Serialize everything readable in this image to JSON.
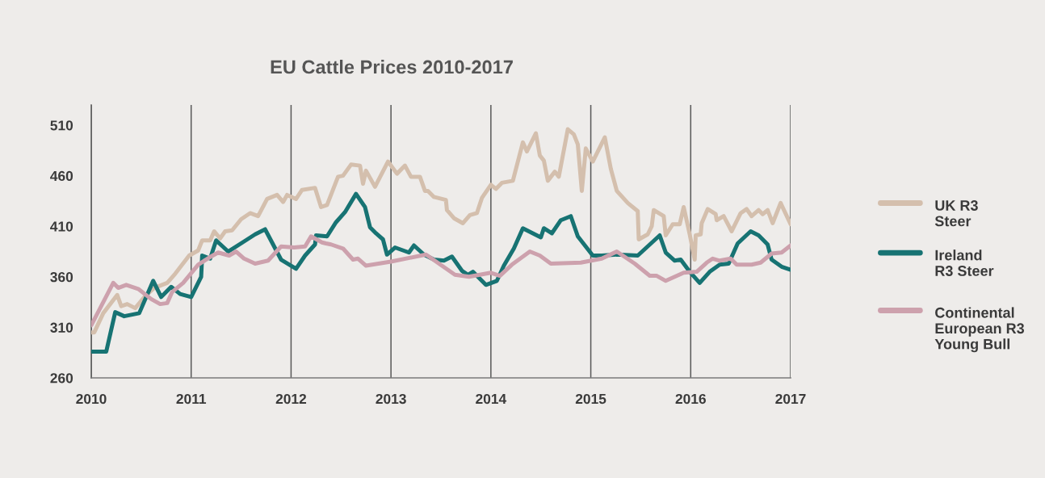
{
  "chart_data": {
    "type": "line",
    "title": "EU Cattle Prices 2010-2017",
    "xlim": [
      2010,
      2017
    ],
    "ylim": [
      260,
      530
    ],
    "xticks": [
      2010,
      2011,
      2012,
      2013,
      2014,
      2015,
      2016,
      2017
    ],
    "yticks": [
      260,
      310,
      360,
      410,
      460,
      510
    ],
    "grid": "x",
    "legend": "right",
    "line_style": "solid",
    "series": [
      {
        "name": "UK R3\nSteer",
        "color": "#d4bfad",
        "x": [
          2010.0,
          2010.03,
          2010.12,
          2010.26,
          2010.3,
          2010.36,
          2010.44,
          2010.54,
          2010.63,
          2010.76,
          2010.84,
          2010.98,
          2011.07,
          2011.11,
          2011.19,
          2011.23,
          2011.29,
          2011.34,
          2011.41,
          2011.5,
          2011.59,
          2011.67,
          2011.76,
          2011.86,
          2011.92,
          2011.96,
          2012.05,
          2012.11,
          2012.24,
          2012.3,
          2012.36,
          2012.47,
          2012.52,
          2012.6,
          2012.69,
          2012.72,
          2012.75,
          2012.84,
          2012.97,
          2013.06,
          2013.14,
          2013.2,
          2013.29,
          2013.34,
          2013.37,
          2013.43,
          2013.55,
          2013.56,
          2013.63,
          2013.72,
          2013.79,
          2013.86,
          2013.91,
          2014.0,
          2014.05,
          2014.11,
          2014.22,
          2014.32,
          2014.36,
          2014.45,
          2014.49,
          2014.53,
          2014.57,
          2014.64,
          2014.68,
          2014.77,
          2014.83,
          2014.87,
          2014.91,
          2014.95,
          2015.02,
          2015.14,
          2015.2,
          2015.26,
          2015.37,
          2015.47,
          2015.48,
          2015.57,
          2015.61,
          2015.63,
          2015.73,
          2015.75,
          2015.82,
          2015.89,
          2015.93,
          2015.99,
          2016.04,
          2016.05,
          2016.1,
          2016.11,
          2016.17,
          2016.25,
          2016.26,
          2016.33,
          2016.41,
          2016.5,
          2016.56,
          2016.61,
          2016.68,
          2016.72,
          2016.77,
          2016.82,
          2016.9,
          2017.0
        ],
        "values": [
          305,
          305,
          324,
          342,
          331,
          333,
          329,
          341,
          349,
          354,
          363,
          381,
          386,
          396,
          396,
          405,
          398,
          405,
          406,
          417,
          423,
          420,
          437,
          441,
          434,
          441,
          437,
          446,
          448,
          429,
          431,
          459,
          460,
          471,
          470,
          452,
          465,
          449,
          474,
          462,
          470,
          459,
          459,
          445,
          445,
          439,
          436,
          426,
          418,
          413,
          421,
          423,
          438,
          451,
          447,
          453,
          455,
          493,
          484,
          502,
          480,
          475,
          455,
          464,
          459,
          506,
          501,
          491,
          445,
          487,
          474,
          498,
          467,
          445,
          433,
          425,
          397,
          402,
          410,
          426,
          420,
          401,
          412,
          412,
          429,
          402,
          377,
          401,
          402,
          413,
          427,
          422,
          416,
          420,
          405,
          423,
          427,
          420,
          426,
          422,
          426,
          413,
          433,
          412
        ]
      },
      {
        "name": "Ireland\nR3 Steer",
        "color": "#177373",
        "x": [
          2010.0,
          2010.15,
          2010.24,
          2010.33,
          2010.48,
          2010.62,
          2010.7,
          2010.8,
          2010.89,
          2011.0,
          2011.1,
          2011.11,
          2011.19,
          2011.25,
          2011.37,
          2011.53,
          2011.64,
          2011.74,
          2011.9,
          2012.05,
          2012.14,
          2012.24,
          2012.25,
          2012.36,
          2012.45,
          2012.54,
          2012.65,
          2012.74,
          2012.79,
          2012.85,
          2012.92,
          2012.96,
          2013.04,
          2013.18,
          2013.23,
          2013.33,
          2013.43,
          2013.53,
          2013.61,
          2013.71,
          2013.77,
          2013.82,
          2013.95,
          2014.06,
          2014.13,
          2014.23,
          2014.32,
          2014.5,
          2014.53,
          2014.61,
          2014.7,
          2014.8,
          2014.87,
          2015.02,
          2015.11,
          2015.26,
          2015.47,
          2015.69,
          2015.75,
          2015.84,
          2015.9,
          2015.99,
          2016.09,
          2016.19,
          2016.29,
          2016.38,
          2016.47,
          2016.6,
          2016.68,
          2016.77,
          2016.81,
          2016.91,
          2017.0
        ],
        "values": [
          286,
          286,
          325,
          321,
          324,
          356,
          340,
          350,
          343,
          340,
          360,
          381,
          378,
          396,
          385,
          395,
          402,
          407,
          377,
          368,
          381,
          392,
          401,
          400,
          414,
          424,
          442,
          429,
          409,
          403,
          397,
          382,
          389,
          384,
          391,
          382,
          377,
          376,
          380,
          366,
          362,
          365,
          352,
          356,
          371,
          388,
          408,
          399,
          408,
          403,
          416,
          420,
          400,
          381,
          381,
          382,
          381,
          401,
          384,
          376,
          377,
          365,
          354,
          365,
          372,
          373,
          393,
          405,
          401,
          392,
          377,
          370,
          367
        ]
      },
      {
        "name": "Continental\nEuropean R3\nYoung Bull",
        "color": "#cda1ad",
        "x": [
          2010.0,
          2010.22,
          2010.27,
          2010.35,
          2010.47,
          2010.6,
          2010.69,
          2010.76,
          2010.81,
          2010.92,
          2011.07,
          2011.18,
          2011.27,
          2011.38,
          2011.45,
          2011.53,
          2011.64,
          2011.77,
          2011.9,
          2012.03,
          2012.14,
          2012.2,
          2012.31,
          2012.35,
          2012.4,
          2012.52,
          2012.62,
          2012.67,
          2012.75,
          2013.0,
          2013.35,
          2013.64,
          2013.78,
          2014.0,
          2014.09,
          2014.21,
          2014.39,
          2014.49,
          2014.6,
          2014.9,
          2015.11,
          2015.26,
          2015.44,
          2015.59,
          2015.66,
          2015.75,
          2015.93,
          2016.06,
          2016.16,
          2016.22,
          2016.29,
          2016.4,
          2016.46,
          2016.61,
          2016.7,
          2016.81,
          2016.91,
          2017.0
        ],
        "values": [
          312,
          354,
          349,
          352,
          348,
          338,
          333,
          334,
          345,
          354,
          372,
          379,
          384,
          381,
          385,
          378,
          373,
          376,
          390,
          389,
          390,
          400,
          394,
          393,
          392,
          388,
          377,
          378,
          371,
          375,
          382,
          362,
          360,
          364,
          361,
          372,
          385,
          381,
          373,
          374,
          378,
          385,
          373,
          361,
          361,
          356,
          364,
          365,
          374,
          378,
          376,
          378,
          372,
          372,
          374,
          383,
          384,
          391
        ]
      }
    ]
  }
}
